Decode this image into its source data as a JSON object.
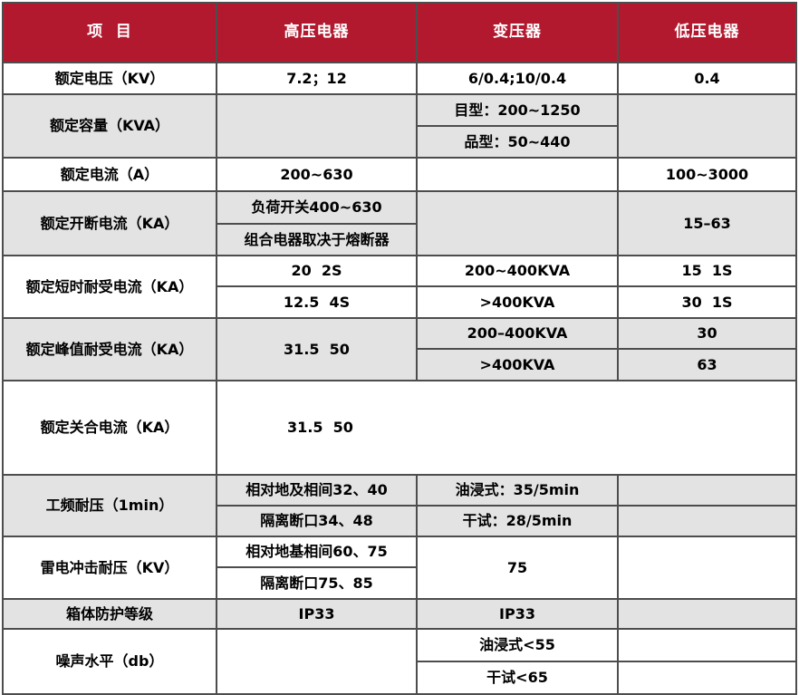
{
  "table": {
    "colors": {
      "header_bg": "#b2192f",
      "header_text": "#ffffff",
      "row_alt_bg": "#e3e3e3",
      "border": "#4d4d4d"
    },
    "header": {
      "col_item": "项  目",
      "col_hv": "高压电器",
      "col_transformer": "变压器",
      "col_lv": "低压电器"
    },
    "rows": {
      "rated_voltage": {
        "label": "额定电压（KV）",
        "hv": "7.2；12",
        "tr": "6/0.4;10/0.4",
        "lv": "0.4"
      },
      "rated_capacity": {
        "label": "额定容量（KVA）",
        "tr_a": "目型：200~1250",
        "tr_b": "品型：50~440"
      },
      "rated_current": {
        "label": "额定电流（A）",
        "hv": "200~630",
        "lv": "100~3000"
      },
      "rated_breaking": {
        "label": "额定开断电流（KA）",
        "hv_a": "负荷开关400~630",
        "hv_b": "组合电器取决于熔断器",
        "lv": "15–63"
      },
      "short_time_withstand": {
        "label": "额定短时耐受电流（KA）",
        "hv_a": "20  2S",
        "hv_b": "12.5  4S",
        "tr_a": "200~400KVA",
        "tr_b": ">400KVA",
        "lv_a": "15  1S",
        "lv_b": "30  1S"
      },
      "peak_withstand": {
        "label": "额定峰值耐受电流（KA）",
        "hv": "31.5  50",
        "tr_a": "200–400KVA",
        "tr_b": ">400KVA",
        "lv_a": "30",
        "lv_b": "63"
      },
      "making_current": {
        "label": "额定关合电流（KA）",
        "value": "31.5  50"
      },
      "power_freq_withstand": {
        "label": "工频耐压（1min）",
        "hv_a": "相对地及相间32、40",
        "hv_b": "隔离断口34、48",
        "tr_a": "油浸式：35/5min",
        "tr_b": "干试：28/5min"
      },
      "lightning_impulse": {
        "label": "雷电冲击耐压（KV）",
        "hv_a": "相对地基相间60、75",
        "hv_b": "隔离断口75、85",
        "tr": "75"
      },
      "enclosure_protection": {
        "label": "箱体防护等级",
        "hv": "IP33",
        "tr": "IP33"
      },
      "noise_level": {
        "label": "噪声水平（db）",
        "tr_a": "油浸式<55",
        "tr_b": "干试<65"
      }
    }
  }
}
